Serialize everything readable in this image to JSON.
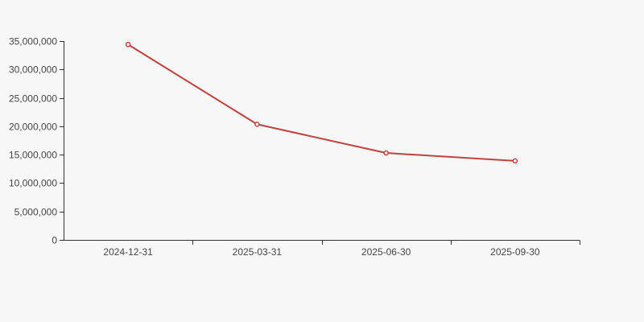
{
  "page": {
    "background_color": "#f7f7f7"
  },
  "chart_data": {
    "type": "line",
    "title": "",
    "xlabel": "",
    "ylabel": "",
    "categories": [
      "2024-12-31",
      "2025-03-31",
      "2025-06-30",
      "2025-09-30"
    ],
    "values": [
      34400000,
      20350000,
      15300000,
      13900000
    ],
    "ylim": [
      0,
      35000000
    ],
    "ytick_step": 5000000,
    "ytick_values": [
      0,
      5000000,
      10000000,
      15000000,
      20000000,
      25000000,
      30000000,
      35000000
    ],
    "ytick_labels": [
      "0",
      "5,000,000",
      "10,000,000",
      "15,000,000",
      "20,000,000",
      "25,000,000",
      "30,000,000",
      "35,000,000"
    ],
    "grid": false,
    "legend": false,
    "line_color": "#c2413d",
    "marker_fill": "#ffffff",
    "axis_color": "#333333",
    "label_color": "#444444"
  }
}
